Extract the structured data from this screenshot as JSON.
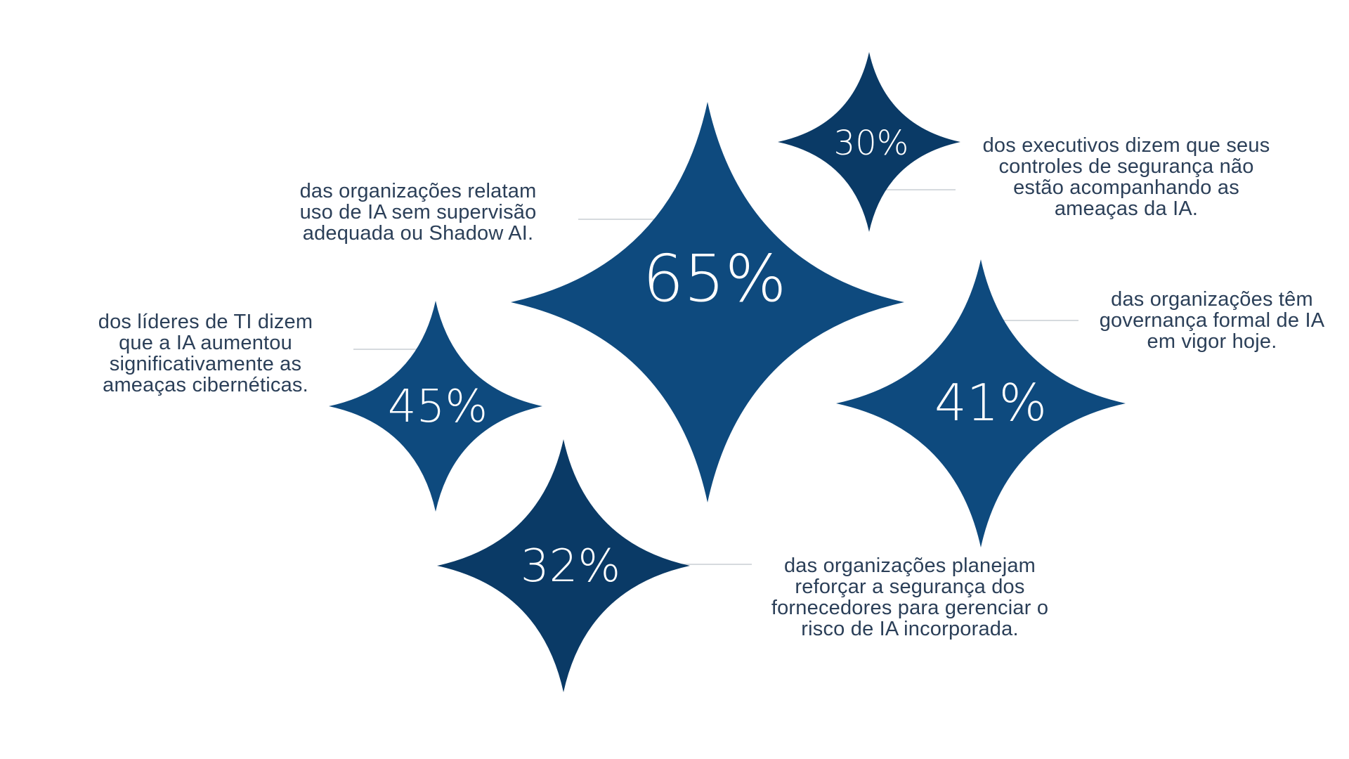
{
  "colors": {
    "star_fill": "#0e4a7e",
    "star_fill_dark": "#0a3a66",
    "text": "#2b3f58",
    "connector": "#c9ced4"
  },
  "stats": [
    {
      "id": "stat-65",
      "value": "65%",
      "label": "das organizações relatam\nuso de IA sem supervisão\nadequada ou Shadow AI."
    },
    {
      "id": "stat-30",
      "value": "30%",
      "label": "dos executivos dizem que seus\ncontroles de segurança não\nestão acompanhando as\nameaças da IA."
    },
    {
      "id": "stat-45",
      "value": "45%",
      "label": "dos líderes de TI dizem\nque a IA aumentou\nsignificativamente as\nameaças cibernéticas."
    },
    {
      "id": "stat-41",
      "value": "41%",
      "label": "das organizações têm\ngovernança formal de IA\nem vigor hoje."
    },
    {
      "id": "stat-32",
      "value": "32%",
      "label": "das organizações planejam\nreforçar a segurança dos\nfornecedores para gerenciar o\nrisco de IA incorporada."
    }
  ]
}
